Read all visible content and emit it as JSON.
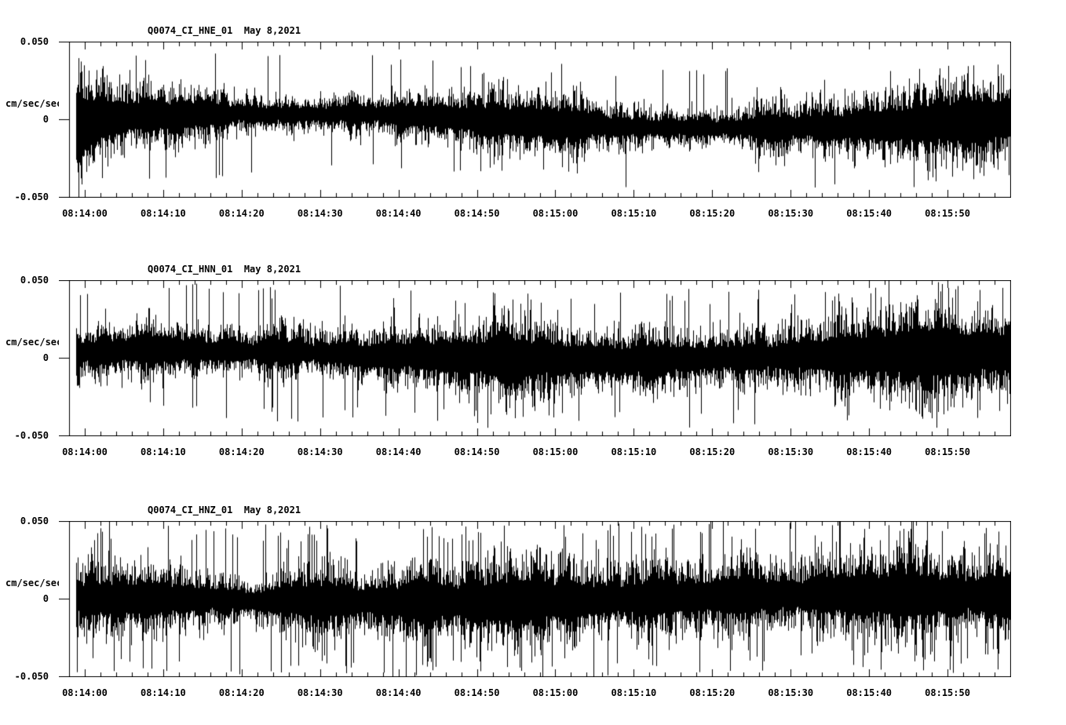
{
  "page": {
    "background_color": "#ffffff",
    "trace_color": "#000000",
    "description": "Three-component seismogram strip chart, station Q0074 (CI network), May 8, 2021"
  },
  "chart_data": [
    {
      "type": "line",
      "title": "Q0074_CI_HNE_01  May 8,2021",
      "station_channel": "Q0074_CI_HNE_01",
      "date_label": "May 8,2021",
      "ylabel": "cm/sec/sec",
      "ylim": [
        -0.05,
        0.05
      ],
      "ytick_values": [
        0.05,
        0,
        -0.05
      ],
      "ytick_labels": [
        "0.050",
        "0",
        "-0.050"
      ],
      "xtick_labels": [
        "08:14:00",
        "08:14:10",
        "08:14:20",
        "08:14:30",
        "08:14:40",
        "08:14:50",
        "08:15:00",
        "08:15:10",
        "08:15:20",
        "08:15:30",
        "08:15:40",
        "08:15:50"
      ],
      "x_axis": {
        "start_time": "08:13:58",
        "end_time": "08:15:58",
        "span_seconds": 120,
        "major_tick_sec": 10,
        "minor_tick_sec": 2
      },
      "grid": false,
      "legend": false,
      "series": [
        {
          "name": "HNE",
          "kind": "continuous-noise-envelope",
          "mean": 0,
          "band_amplitude": 0.0105,
          "typical_peak": 0.033,
          "max_peak": 0.042,
          "spike_prob": 0.022,
          "onset_dip": 0.013,
          "envelope_modulation": 0.3,
          "baseline_wander": 0.004,
          "seed": 101
        }
      ]
    },
    {
      "type": "line",
      "title": "Q0074_CI_HNN_01  May 8,2021",
      "station_channel": "Q0074_CI_HNN_01",
      "date_label": "May 8,2021",
      "ylabel": "cm/sec/sec",
      "ylim": [
        -0.05,
        0.05
      ],
      "ytick_values": [
        0.05,
        0,
        -0.05
      ],
      "ytick_labels": [
        "0.050",
        "0",
        "-0.050"
      ],
      "xtick_labels": [
        "08:14:00",
        "08:14:10",
        "08:14:20",
        "08:14:30",
        "08:14:40",
        "08:14:50",
        "08:15:00",
        "08:15:10",
        "08:15:20",
        "08:15:30",
        "08:15:40",
        "08:15:50"
      ],
      "x_axis": {
        "start_time": "08:13:58",
        "end_time": "08:15:58",
        "span_seconds": 120,
        "major_tick_sec": 10,
        "minor_tick_sec": 2
      },
      "grid": false,
      "legend": false,
      "series": [
        {
          "name": "HNN",
          "kind": "continuous-noise-envelope",
          "mean": 0,
          "band_amplitude": 0.0118,
          "typical_peak": 0.036,
          "max_peak": 0.045,
          "spike_prob": 0.028,
          "onset_dip": 0,
          "envelope_modulation": 0.26,
          "baseline_wander": 0.003,
          "seed": 202
        }
      ]
    },
    {
      "type": "line",
      "title": "Q0074_CI_HNZ_01  May 8,2021",
      "station_channel": "Q0074_CI_HNZ_01",
      "date_label": "May 8,2021",
      "ylabel": "cm/sec/sec",
      "ylim": [
        -0.05,
        0.05
      ],
      "ytick_values": [
        0.05,
        0,
        -0.05
      ],
      "ytick_labels": [
        "0.050",
        "0",
        "-0.050"
      ],
      "xtick_labels": [
        "08:14:00",
        "08:14:10",
        "08:14:20",
        "08:14:30",
        "08:14:40",
        "08:14:50",
        "08:15:00",
        "08:15:10",
        "08:15:20",
        "08:15:30",
        "08:15:40",
        "08:15:50"
      ],
      "x_axis": {
        "start_time": "08:13:58",
        "end_time": "08:15:58",
        "span_seconds": 120,
        "major_tick_sec": 10,
        "minor_tick_sec": 2
      },
      "grid": false,
      "legend": false,
      "series": [
        {
          "name": "HNZ",
          "kind": "continuous-noise-envelope",
          "mean": 0,
          "band_amplitude": 0.013,
          "typical_peak": 0.04,
          "max_peak": 0.05,
          "spike_prob": 0.055,
          "onset_dip": 0,
          "envelope_modulation": 0.18,
          "baseline_wander": 0.0022,
          "seed": 303
        }
      ]
    }
  ]
}
